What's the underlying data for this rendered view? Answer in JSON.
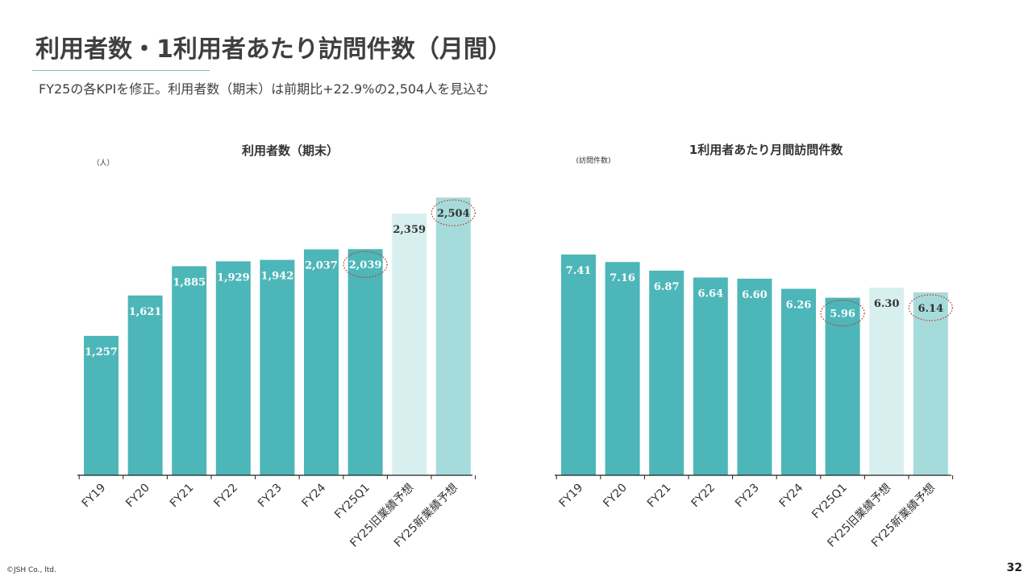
{
  "slide": {
    "title": "利用者数・1利用者あたり訪問件数（月間）",
    "subtitle": "FY25の各KPIを修正。利用者数（期末）は前期比+22.9%の2,504人を見込む",
    "copyright": "©JSH Co., ltd.",
    "page_number": "32"
  },
  "colors": {
    "actual": "#4db6b8",
    "old_forecast": "#d8efef",
    "new_forecast": "#a6dbdb",
    "highlight_circle": "#c0392b",
    "label_on_dark": "#ffffff",
    "label_on_light": "#333333"
  },
  "chart_data": [
    {
      "type": "bar",
      "title": "利用者数（期末）",
      "unit_label": "（人）",
      "categories": [
        "FY19",
        "FY20",
        "FY21",
        "FY22",
        "FY23",
        "FY24",
        "FY25Q1",
        "FY25旧業績予想",
        "FY25新業績予想"
      ],
      "values": [
        1257,
        1621,
        1885,
        1929,
        1942,
        2037,
        2039,
        2359,
        2504
      ],
      "value_labels": [
        "1,257",
        "1,621",
        "1,885",
        "1,929",
        "1,942",
        "2,037",
        "2,039",
        "2,359",
        "2,504"
      ],
      "bar_kinds": [
        "actual",
        "actual",
        "actual",
        "actual",
        "actual",
        "actual",
        "actual",
        "old_forecast",
        "new_forecast"
      ],
      "highlighted": [
        "FY25Q1",
        "FY25新業績予想"
      ],
      "ylim": [
        0,
        2600
      ]
    },
    {
      "type": "bar",
      "title": "1利用者あたり月間訪問件数",
      "unit_label": "(訪問件数)",
      "categories": [
        "FY19",
        "FY20",
        "FY21",
        "FY22",
        "FY23",
        "FY24",
        "FY25Q1",
        "FY25旧業績予想",
        "FY25新業績予想"
      ],
      "values": [
        7.41,
        7.16,
        6.87,
        6.64,
        6.6,
        6.26,
        5.96,
        6.3,
        6.14
      ],
      "value_labels": [
        "7.41",
        "7.16",
        "6.87",
        "6.64",
        "6.60",
        "6.26",
        "5.96",
        "6.30",
        "6.14"
      ],
      "bar_kinds": [
        "actual",
        "actual",
        "actual",
        "actual",
        "actual",
        "actual",
        "actual",
        "old_forecast",
        "new_forecast"
      ],
      "highlighted": [
        "FY25Q1",
        "FY25新業績予想"
      ],
      "ylim": [
        0,
        7.41
      ]
    }
  ]
}
